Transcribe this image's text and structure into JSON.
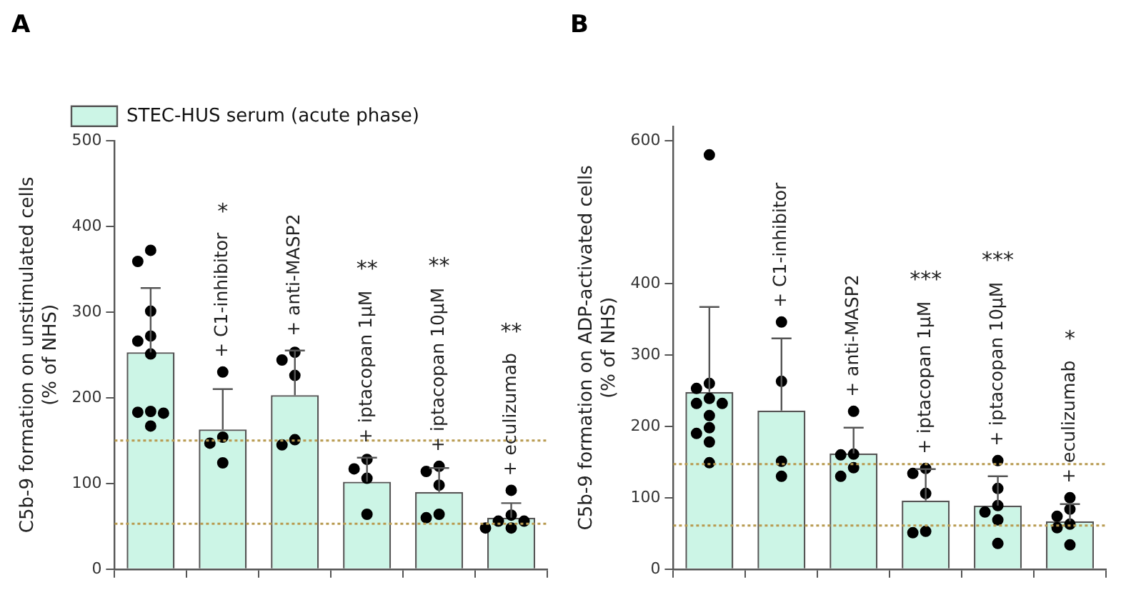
{
  "chart_data": [
    {
      "type": "bar",
      "title": "A",
      "ylabel": "C5b-9 formation on unstimulated cells\n(% of NHS)",
      "categories": [
        null,
        "+ C1-inhibitor",
        "+ anti-MASP2",
        "+ iptacopan 1µM",
        "+ iptacopan 10µM",
        "+ eculizumab"
      ],
      "series": [
        {
          "name": "STEC-HUS serum (acute phase)",
          "color": "#ccf5e6",
          "values": [
            253,
            163,
            203,
            102,
            90,
            60
          ],
          "errors": [
            [
              253,
              328
            ],
            [
              163,
              210
            ],
            [
              203,
              255
            ],
            [
              102,
              130
            ],
            [
              90,
              118
            ],
            [
              60,
              77
            ]
          ]
        },
        {
          "type": "scatter",
          "color": "#000000",
          "x": [
            null,
            null,
            null,
            null,
            null,
            null,
            null,
            null,
            null,
            null,
            "+ C1-inhibitor",
            "+ C1-inhibitor",
            "+ C1-inhibitor",
            "+ C1-inhibitor",
            "+ anti-MASP2",
            "+ anti-MASP2",
            "+ anti-MASP2",
            "+ anti-MASP2",
            "+ anti-MASP2",
            "+ iptacopan 1µM",
            "+ iptacopan 1µM",
            "+ iptacopan 1µM",
            "+ iptacopan 1µM",
            "+ iptacopan 10µM",
            "+ iptacopan 10µM",
            "+ iptacopan 10µM",
            "+ iptacopan 10µM",
            "+ iptacopan 10µM",
            "+ eculizumab",
            "+ eculizumab",
            "+ eculizumab",
            "+ eculizumab",
            "+ eculizumab",
            "+ eculizumab"
          ],
          "values": [
            372,
            359,
            301,
            272,
            266,
            251,
            184,
            182,
            167,
            183,
            230,
            154,
            147,
            124,
            253,
            244,
            226,
            145,
            151,
            128,
            117,
            106,
            64,
            120,
            114,
            98,
            60,
            64,
            92,
            63,
            56,
            48,
            48,
            56
          ]
        }
      ],
      "ref_lines": [
        {
          "axis": "y",
          "value": 150,
          "color": "#b89a50",
          "line_style": "dotted"
        },
        {
          "axis": "y",
          "value": 53,
          "color": "#b89a50",
          "line_style": "dotted"
        }
      ],
      "annotations": [
        "*",
        "**",
        "**",
        "**"
      ],
      "ylim": [
        0,
        500
      ],
      "yticks": [
        0,
        100,
        200,
        300,
        400,
        500
      ],
      "legend": "top left",
      "tick_labels": "y"
    },
    {
      "type": "bar",
      "title": "B",
      "ylabel": "C5b-9 formation on ADP-activated cells\n(% of NHS)",
      "categories": [
        null,
        "+ C1-inhibitor",
        "+ anti-MASP2",
        "+ iptacopan 1µM",
        "+ iptacopan 10µM",
        "+ eculizumab"
      ],
      "series": [
        {
          "color": "#ccf5e6",
          "values": [
            248,
            222,
            162,
            96,
            89,
            67
          ],
          "errors": [
            [
              248,
              367
            ],
            [
              222,
              323
            ],
            [
              162,
              198
            ],
            [
              96,
              140
            ],
            [
              89,
              130
            ],
            [
              67,
              91
            ]
          ]
        },
        {
          "type": "scatter",
          "color": "#000000",
          "x": [
            null,
            null,
            null,
            null,
            null,
            null,
            null,
            null,
            null,
            null,
            null,
            "+ C1-inhibitor",
            "+ C1-inhibitor",
            "+ C1-inhibitor",
            "+ C1-inhibitor",
            "+ anti-MASP2",
            "+ anti-MASP2",
            "+ anti-MASP2",
            "+ anti-MASP2",
            "+ anti-MASP2",
            "+ iptacopan 1µM",
            "+ iptacopan 1µM",
            "+ iptacopan 1µM",
            "+ iptacopan 1µM",
            "+ iptacopan 1µM",
            "+ iptacopan 10µM",
            "+ iptacopan 10µM",
            "+ iptacopan 10µM",
            "+ iptacopan 10µM",
            "+ iptacopan 10µM",
            "+ iptacopan 10µM",
            "+ eculizumab",
            "+ eculizumab",
            "+ eculizumab",
            "+ eculizumab",
            "+ eculizumab",
            "+ eculizumab"
          ],
          "values": [
            580,
            260,
            239,
            253,
            232,
            232,
            215,
            198,
            190,
            178,
            149,
            346,
            263,
            151,
            130,
            221,
            160,
            161,
            142,
            130,
            141,
            134,
            106,
            51,
            53,
            152,
            113,
            89,
            80,
            69,
            36,
            100,
            84,
            74,
            63,
            58,
            34
          ]
        }
      ],
      "ref_lines": [
        {
          "axis": "y",
          "value": 147,
          "color": "#b89a50",
          "line_style": "dotted"
        },
        {
          "axis": "y",
          "value": 61,
          "color": "#b89a50",
          "line_style": "dotted"
        }
      ],
      "annotations": [
        "***",
        "***",
        "*"
      ],
      "ylim": [
        0,
        620
      ],
      "yticks": [
        0,
        100,
        200,
        300,
        400,
        600
      ],
      "tick_labels": "y"
    }
  ]
}
